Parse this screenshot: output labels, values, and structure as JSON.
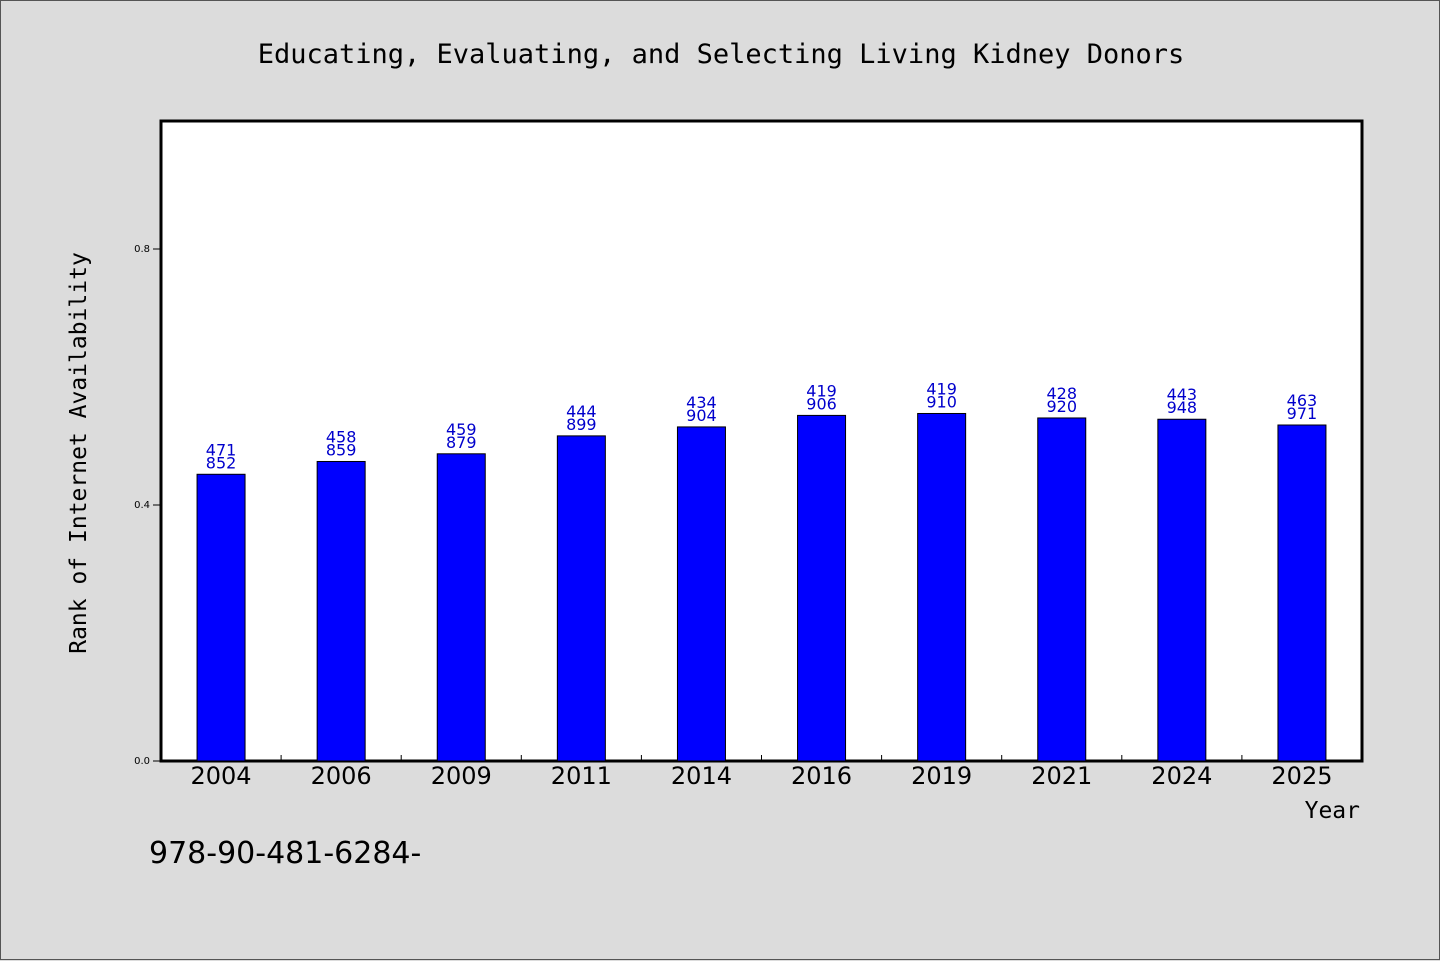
{
  "chart_data": {
    "type": "bar",
    "title": "Educating, Evaluating, and Selecting Living Kidney Donors",
    "xlabel": "Year",
    "ylabel": "Rank of Internet Availability",
    "categories": [
      "2004",
      "2006",
      "2009",
      "2011",
      "2014",
      "2016",
      "2019",
      "2021",
      "2024",
      "2025"
    ],
    "values": [
      0.448,
      0.468,
      0.48,
      0.508,
      0.522,
      0.54,
      0.543,
      0.536,
      0.534,
      0.525
    ],
    "bar_labels": [
      [
        "471",
        "852"
      ],
      [
        "458",
        "859"
      ],
      [
        "459",
        "879"
      ],
      [
        "444",
        "899"
      ],
      [
        "434",
        "904"
      ],
      [
        "419",
        "906"
      ],
      [
        "419",
        "910"
      ],
      [
        "428",
        "920"
      ],
      [
        "443",
        "948"
      ],
      [
        "463",
        "971"
      ]
    ],
    "yticks": [
      {
        "value": 0.0,
        "label": "0.0"
      },
      {
        "value": 0.4,
        "label": "0.4"
      },
      {
        "value": 0.8,
        "label": "0.8"
      }
    ],
    "ylim": [
      0,
      1.0
    ],
    "grid": false,
    "bar_color": "#0000ff",
    "label_color": "#0000cc"
  },
  "footer": {
    "text": "978-90-481-6284-"
  }
}
